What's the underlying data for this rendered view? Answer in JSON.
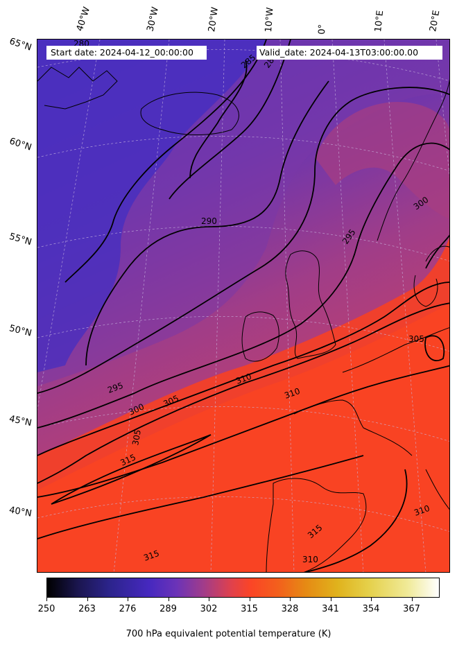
{
  "header": {
    "start_date": "Start date: 2024-04-12_00:00:00",
    "valid_date": "Valid_date: 2024-04-13T03:00:00.00"
  },
  "map": {
    "lon_labels": [
      "40°W",
      "30°W",
      "20°W",
      "10°W",
      "0°",
      "10°E",
      "20°E"
    ],
    "lat_labels": [
      "65°N",
      "60°N",
      "55°N",
      "50°N",
      "45°N",
      "40°N"
    ],
    "contour_labels": [
      "280",
      "285",
      "285",
      "290",
      "295",
      "295",
      "300",
      "300",
      "305",
      "305",
      "305",
      "310",
      "310",
      "310",
      "310",
      "315",
      "315",
      "315"
    ],
    "colors": {
      "cold": "#4a2fb8",
      "mid": "#9a3c8a",
      "warm": "#f2402a",
      "hot": "#fb4a20"
    }
  },
  "colorbar": {
    "label": "700 hPa equivalent potential temperature (K)",
    "ticks": [
      "250",
      "263",
      "276",
      "289",
      "302",
      "315",
      "328",
      "341",
      "354",
      "367"
    ],
    "colormap": "CMRmap",
    "range": [
      250,
      376
    ]
  }
}
